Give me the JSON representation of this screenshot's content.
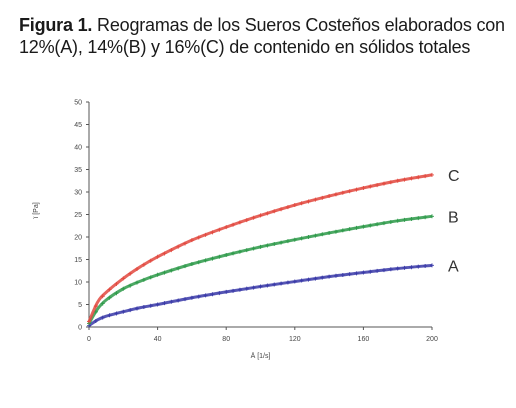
{
  "caption": {
    "label": "Figura 1.",
    "text": " Reogramas de los Sueros Costeños elaborados con 12%(A), 14%(B) y 16%(C) de contenido en sólidos totales"
  },
  "chart_data": {
    "type": "line",
    "title": "",
    "xlabel": "Ä [1/s]",
    "ylabel": "ï [Pa]",
    "xlim": [
      0,
      200
    ],
    "ylim": [
      0,
      50
    ],
    "x_ticks": [
      0,
      40,
      80,
      120,
      160,
      200
    ],
    "y_ticks": [
      0,
      5,
      10,
      15,
      20,
      25,
      30,
      35,
      40,
      45,
      50
    ],
    "grid": false,
    "series": [
      {
        "name": "A",
        "color": "#3a3aa8",
        "x": [
          0,
          5,
          10,
          20,
          30,
          40,
          60,
          80,
          100,
          120,
          140,
          160,
          180,
          200
        ],
        "y": [
          0.3,
          1.6,
          2.4,
          3.4,
          4.3,
          5.0,
          6.5,
          7.8,
          9.0,
          10.1,
          11.2,
          12.1,
          13.0,
          13.7
        ]
      },
      {
        "name": "B",
        "color": "#2e9a4a",
        "x": [
          0,
          5,
          10,
          20,
          30,
          40,
          60,
          80,
          100,
          120,
          140,
          160,
          180,
          200
        ],
        "y": [
          0.8,
          4.0,
          6.0,
          8.5,
          10.2,
          11.6,
          14.0,
          16.0,
          17.8,
          19.4,
          20.9,
          22.3,
          23.6,
          24.6
        ]
      },
      {
        "name": "C",
        "color": "#e2493f",
        "x": [
          0,
          5,
          10,
          20,
          30,
          40,
          60,
          80,
          100,
          120,
          140,
          160,
          180,
          200
        ],
        "y": [
          1.2,
          5.5,
          7.7,
          10.8,
          13.4,
          15.6,
          19.3,
          22.2,
          24.8,
          27.1,
          29.1,
          30.9,
          32.5,
          33.8
        ]
      }
    ]
  }
}
